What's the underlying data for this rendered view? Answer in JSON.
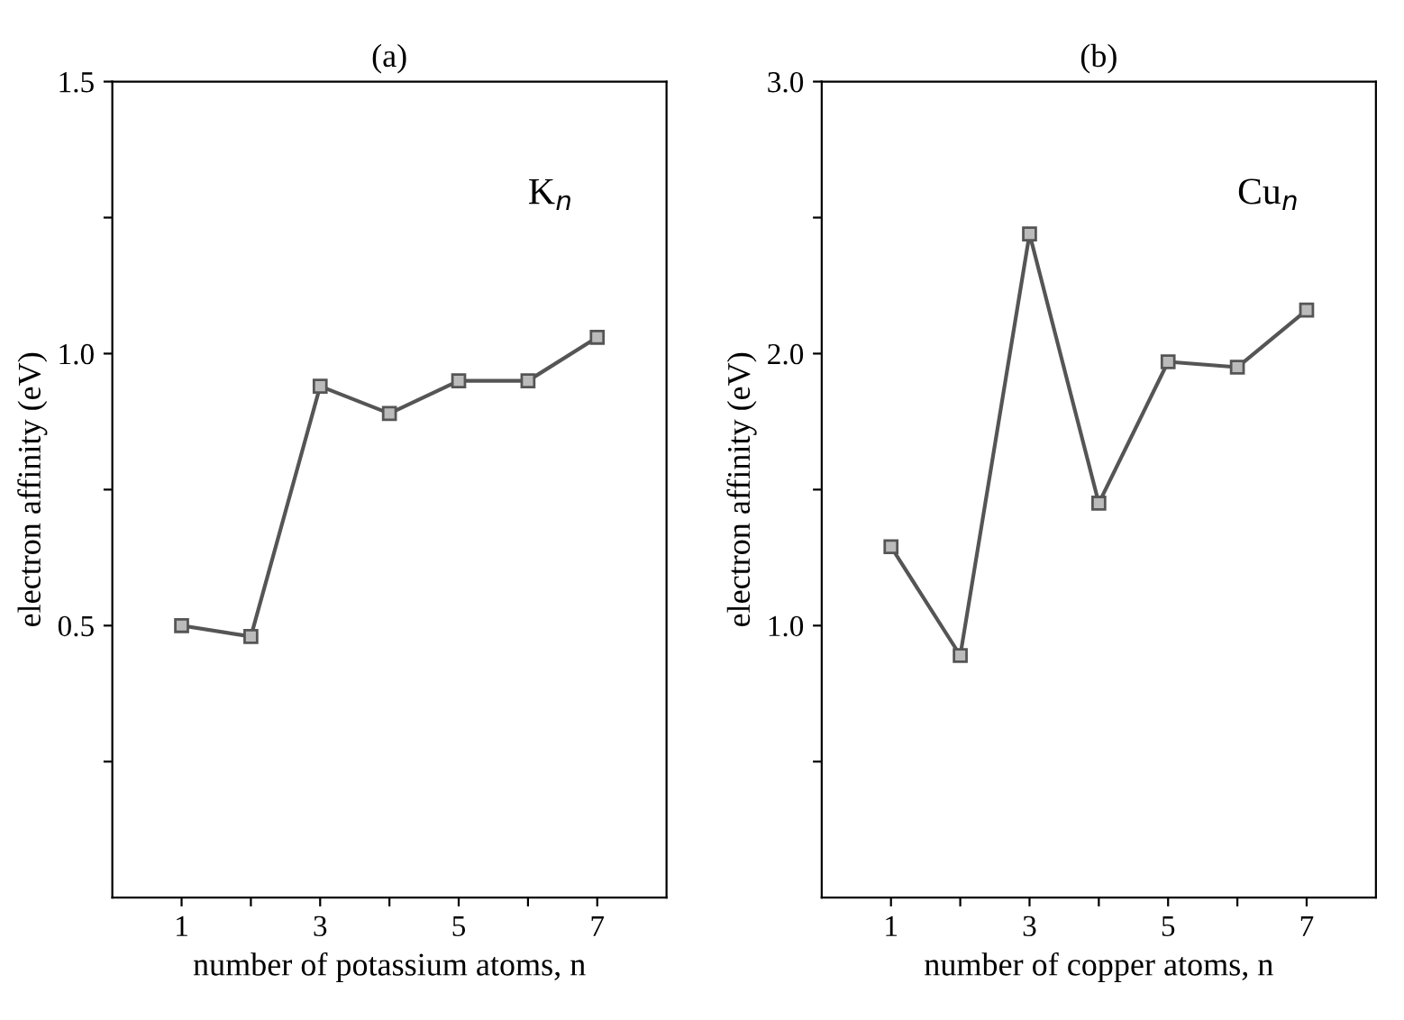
{
  "chart_data": [
    {
      "type": "line",
      "title": "(a)",
      "xlabel": "number of potassium atoms, n",
      "ylabel": "electron affinity (eV)",
      "annotations": [
        "K$_{n}$"
      ],
      "x": [
        1,
        2,
        3,
        4,
        5,
        6,
        7
      ],
      "series": [
        {
          "color": "#555555",
          "values": [
            0.5,
            0.48,
            0.94,
            0.89,
            0.95,
            0.95,
            1.03
          ]
        }
      ],
      "xlim": [
        0,
        8
      ],
      "xticks": [
        1,
        {
          "value": 2,
          "label": null
        },
        3,
        {
          "value": 4,
          "label": null
        },
        5,
        {
          "value": 6,
          "label": null
        },
        7
      ],
      "ylim": [
        0,
        1.5
      ],
      "yticks": [
        {
          "value": 0.25,
          "label": null
        },
        0.5,
        {
          "value": 0.75,
          "label": null
        },
        {
          "value": 1,
          "label": "1.0"
        },
        {
          "value": 1.25,
          "label": null
        },
        1.5
      ],
      "marker": "square",
      "line_style": "solid",
      "grid": false
    },
    {
      "type": "line",
      "title": "(b)",
      "xlabel": "number of copper atoms, n",
      "ylabel": "electron affinity (eV)",
      "annotations": [
        "Cu$_{n}$"
      ],
      "x": [
        1,
        2,
        3,
        4,
        5,
        6,
        7
      ],
      "series": [
        {
          "color": "#555555",
          "values": [
            1.29,
            0.89,
            2.44,
            1.45,
            1.97,
            1.95,
            2.16
          ]
        }
      ],
      "xlim": [
        0,
        8
      ],
      "xticks": [
        1,
        {
          "value": 2,
          "label": null
        },
        3,
        {
          "value": 4,
          "label": null
        },
        5,
        {
          "value": 6,
          "label": null
        },
        7
      ],
      "ylim": [
        0,
        3
      ],
      "yticks": [
        {
          "value": 0.5,
          "label": null
        },
        {
          "value": 1,
          "label": "1.0"
        },
        {
          "value": 1.5,
          "label": null
        },
        {
          "value": 2,
          "label": "2.0"
        },
        {
          "value": 2.5,
          "label": null
        },
        {
          "value": 3,
          "label": "3.0"
        }
      ],
      "marker": "square",
      "line_style": "solid",
      "grid": false
    }
  ]
}
